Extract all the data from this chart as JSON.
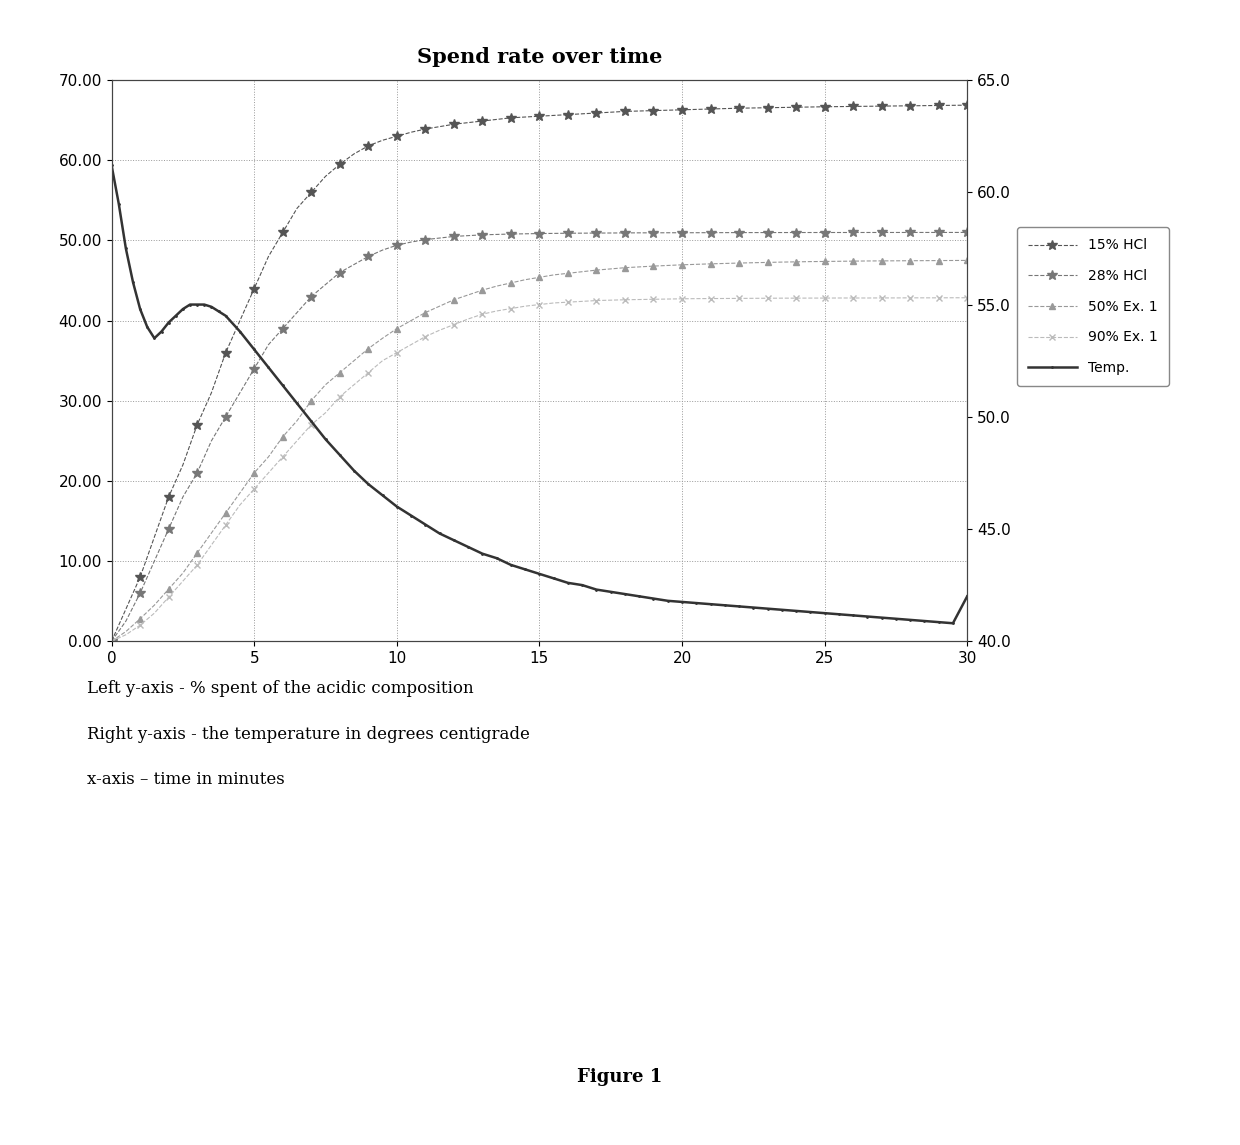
{
  "title": "Spend rate over time",
  "left_ylabel": "Left y-axis - % spent of the acidic composition",
  "right_ylabel": "Right y-axis - the temperature in degrees centigrade",
  "xlabel_note": "x-axis – time in minutes",
  "figure_label": "Figure 1",
  "xlim": [
    0,
    30
  ],
  "left_ylim": [
    0,
    70
  ],
  "right_ylim": [
    40.0,
    65.0
  ],
  "xticks": [
    0,
    5,
    10,
    15,
    20,
    25,
    30
  ],
  "left_yticks": [
    0.0,
    10.0,
    20.0,
    30.0,
    40.0,
    50.0,
    60.0,
    70.0
  ],
  "right_yticks": [
    40.0,
    45.0,
    50.0,
    55.0,
    60.0,
    65.0
  ],
  "series": {
    "15% HCl": {
      "color": "#555555",
      "linestyle": "--",
      "marker": "*",
      "markersize": 7,
      "linewidth": 0.8,
      "x": [
        0,
        0.5,
        1,
        1.5,
        2,
        2.5,
        3,
        3.5,
        4,
        4.5,
        5,
        5.5,
        6,
        6.5,
        7,
        7.5,
        8,
        8.5,
        9,
        9.5,
        10,
        10.5,
        11,
        11.5,
        12,
        12.5,
        13,
        13.5,
        14,
        14.5,
        15,
        15.5,
        16,
        16.5,
        17,
        17.5,
        18,
        18.5,
        19,
        19.5,
        20,
        20.5,
        21,
        21.5,
        22,
        22.5,
        23,
        23.5,
        24,
        24.5,
        25,
        25.5,
        26,
        26.5,
        27,
        27.5,
        28,
        28.5,
        29,
        29.5,
        30
      ],
      "y": [
        0,
        4,
        8,
        13,
        18,
        22,
        27,
        31,
        36,
        40,
        44,
        48,
        51,
        54,
        56,
        58,
        59.5,
        60.8,
        61.8,
        62.5,
        63.0,
        63.5,
        63.9,
        64.2,
        64.5,
        64.7,
        64.9,
        65.1,
        65.3,
        65.4,
        65.5,
        65.6,
        65.7,
        65.8,
        65.9,
        66.0,
        66.1,
        66.15,
        66.2,
        66.25,
        66.3,
        66.35,
        66.4,
        66.45,
        66.5,
        66.53,
        66.56,
        66.59,
        66.62,
        66.65,
        66.68,
        66.7,
        66.72,
        66.74,
        66.76,
        66.78,
        66.8,
        66.82,
        66.84,
        66.86,
        66.88
      ]
    },
    "28% HCl": {
      "color": "#777777",
      "linestyle": "--",
      "marker": "*",
      "markersize": 7,
      "linewidth": 0.8,
      "x": [
        0,
        0.5,
        1,
        1.5,
        2,
        2.5,
        3,
        3.5,
        4,
        4.5,
        5,
        5.5,
        6,
        6.5,
        7,
        7.5,
        8,
        8.5,
        9,
        9.5,
        10,
        10.5,
        11,
        11.5,
        12,
        12.5,
        13,
        13.5,
        14,
        14.5,
        15,
        15.5,
        16,
        16.5,
        17,
        17.5,
        18,
        18.5,
        19,
        19.5,
        20,
        20.5,
        21,
        21.5,
        22,
        22.5,
        23,
        23.5,
        24,
        24.5,
        25,
        25.5,
        26,
        26.5,
        27,
        27.5,
        28,
        28.5,
        29,
        29.5,
        30
      ],
      "y": [
        0,
        2.5,
        6,
        10,
        14,
        18,
        21,
        25,
        28,
        31,
        34,
        37,
        39,
        41,
        43,
        44.5,
        46,
        47,
        48,
        48.8,
        49.4,
        49.8,
        50.1,
        50.3,
        50.5,
        50.6,
        50.7,
        50.75,
        50.8,
        50.83,
        50.86,
        50.88,
        50.9,
        50.91,
        50.92,
        50.93,
        50.94,
        50.95,
        50.95,
        50.96,
        50.96,
        50.965,
        50.97,
        50.975,
        50.98,
        50.982,
        50.984,
        50.986,
        50.988,
        50.99,
        50.991,
        50.992,
        50.993,
        50.994,
        50.995,
        50.996,
        50.997,
        50.998,
        50.998,
        50.999,
        51.0
      ]
    },
    "50% Ex. 1": {
      "color": "#999999",
      "linestyle": "--",
      "marker": "^",
      "markersize": 5,
      "linewidth": 0.8,
      "x": [
        0,
        0.5,
        1,
        1.5,
        2,
        2.5,
        3,
        3.5,
        4,
        4.5,
        5,
        5.5,
        6,
        6.5,
        7,
        7.5,
        8,
        8.5,
        9,
        9.5,
        10,
        10.5,
        11,
        11.5,
        12,
        12.5,
        13,
        13.5,
        14,
        14.5,
        15,
        15.5,
        16,
        16.5,
        17,
        17.5,
        18,
        18.5,
        19,
        19.5,
        20,
        20.5,
        21,
        21.5,
        22,
        22.5,
        23,
        23.5,
        24,
        24.5,
        25,
        25.5,
        26,
        26.5,
        27,
        27.5,
        28,
        28.5,
        29,
        29.5,
        30
      ],
      "y": [
        0,
        1.2,
        2.8,
        4.5,
        6.5,
        8.5,
        11,
        13.5,
        16,
        18.5,
        21,
        23,
        25.5,
        27.5,
        30,
        32,
        33.5,
        35,
        36.5,
        37.8,
        39,
        40,
        41,
        41.8,
        42.6,
        43.2,
        43.8,
        44.3,
        44.7,
        45.1,
        45.4,
        45.7,
        45.9,
        46.1,
        46.3,
        46.45,
        46.6,
        46.7,
        46.8,
        46.88,
        46.96,
        47.02,
        47.08,
        47.13,
        47.18,
        47.22,
        47.26,
        47.3,
        47.33,
        47.36,
        47.38,
        47.4,
        47.42,
        47.44,
        47.45,
        47.46,
        47.47,
        47.48,
        47.49,
        47.5,
        47.51
      ]
    },
    "90% Ex. 1": {
      "color": "#bbbbbb",
      "linestyle": "--",
      "marker": "x",
      "markersize": 5,
      "linewidth": 0.8,
      "x": [
        0,
        0.5,
        1,
        1.5,
        2,
        2.5,
        3,
        3.5,
        4,
        4.5,
        5,
        5.5,
        6,
        6.5,
        7,
        7.5,
        8,
        8.5,
        9,
        9.5,
        10,
        10.5,
        11,
        11.5,
        12,
        12.5,
        13,
        13.5,
        14,
        14.5,
        15,
        15.5,
        16,
        16.5,
        17,
        17.5,
        18,
        18.5,
        19,
        19.5,
        20,
        20.5,
        21,
        21.5,
        22,
        22.5,
        23,
        23.5,
        24,
        24.5,
        25,
        25.5,
        26,
        26.5,
        27,
        27.5,
        28,
        28.5,
        29,
        29.5,
        30
      ],
      "y": [
        0,
        0.8,
        2,
        3.5,
        5.5,
        7.5,
        9.5,
        12,
        14.5,
        17,
        19,
        21,
        23,
        25,
        27,
        28.5,
        30.5,
        32,
        33.5,
        35,
        36,
        37,
        38,
        38.8,
        39.5,
        40.2,
        40.8,
        41.2,
        41.5,
        41.8,
        42.0,
        42.2,
        42.3,
        42.4,
        42.5,
        42.55,
        42.6,
        42.63,
        42.66,
        42.69,
        42.72,
        42.74,
        42.75,
        42.76,
        42.77,
        42.78,
        42.79,
        42.8,
        42.8,
        42.81,
        42.81,
        42.82,
        42.82,
        42.82,
        42.83,
        42.83,
        42.84,
        42.84,
        42.84,
        42.85,
        42.85
      ]
    },
    "Temp.": {
      "color": "#333333",
      "linestyle": "-",
      "marker": ".",
      "markersize": 2,
      "linewidth": 1.8,
      "x": [
        0,
        0.25,
        0.5,
        0.75,
        1,
        1.25,
        1.5,
        1.75,
        2,
        2.25,
        2.5,
        2.75,
        3,
        3.25,
        3.5,
        3.75,
        4,
        4.5,
        5,
        5.5,
        6,
        6.5,
        7,
        7.5,
        8,
        8.5,
        9,
        9.5,
        10,
        10.5,
        11,
        11.5,
        12,
        12.5,
        13,
        13.5,
        14,
        14.5,
        15,
        15.5,
        16,
        16.5,
        17,
        17.5,
        18,
        18.5,
        19,
        19.5,
        20,
        20.5,
        21,
        21.5,
        22,
        22.5,
        23,
        23.5,
        24,
        24.5,
        25,
        25.5,
        26,
        26.5,
        27,
        27.5,
        28,
        28.5,
        29,
        29.5,
        30
      ],
      "y_right": [
        61.2,
        59.5,
        57.5,
        56.0,
        54.8,
        54.0,
        53.5,
        53.8,
        54.2,
        54.5,
        54.8,
        55.0,
        55.0,
        55.0,
        54.9,
        54.7,
        54.5,
        53.8,
        53.0,
        52.2,
        51.4,
        50.6,
        49.8,
        49.0,
        48.3,
        47.6,
        47.0,
        46.5,
        46.0,
        45.6,
        45.2,
        44.8,
        44.5,
        44.2,
        43.9,
        43.7,
        43.4,
        43.2,
        43.0,
        42.8,
        42.6,
        42.5,
        42.3,
        42.2,
        42.1,
        42.0,
        41.9,
        41.8,
        41.75,
        41.7,
        41.65,
        41.6,
        41.55,
        41.5,
        41.45,
        41.4,
        41.35,
        41.3,
        41.25,
        41.2,
        41.15,
        41.1,
        41.05,
        41.0,
        40.95,
        40.9,
        40.85,
        40.8,
        42.0
      ]
    }
  },
  "background_color": "#ffffff",
  "grid_color": "#999999",
  "grid_linestyle": ":",
  "grid_linewidth": 0.7
}
